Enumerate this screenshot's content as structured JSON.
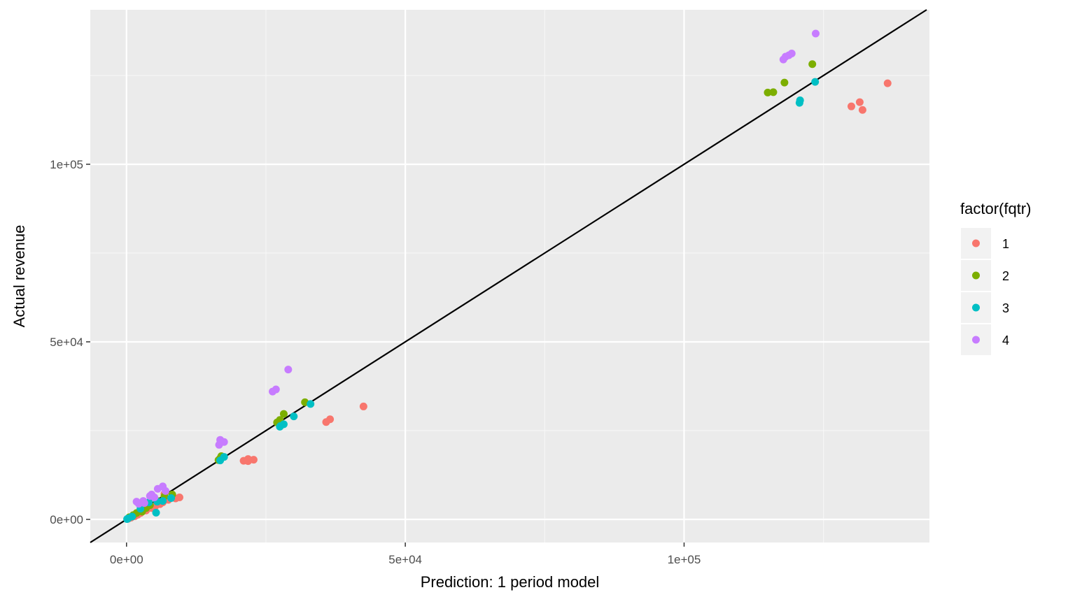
{
  "chart_data": {
    "type": "scatter",
    "title": "",
    "xlabel": "Prediction: 1 period model",
    "ylabel": "Actual revenue",
    "xlim": [
      -6500,
      144000
    ],
    "ylim": [
      -6500,
      143500
    ],
    "x_ticks": [
      {
        "value": 0,
        "label": "0e+00"
      },
      {
        "value": 50000,
        "label": "5e+04"
      },
      {
        "value": 100000,
        "label": "1e+05"
      }
    ],
    "y_ticks": [
      {
        "value": 0,
        "label": "0e+00"
      },
      {
        "value": 50000,
        "label": "5e+04"
      },
      {
        "value": 100000,
        "label": "1e+05"
      }
    ],
    "minor_breaks": [
      25000,
      75000,
      125000
    ],
    "grid": true,
    "reference_line": {
      "slope": 1,
      "intercept": 0
    },
    "legend": {
      "title": "factor(fqtr)",
      "position": "right"
    },
    "series": [
      {
        "name": "1",
        "color": "#F8766D",
        "points": [
          [
            136500,
            122800
          ],
          [
            131500,
            117500
          ],
          [
            130000,
            116300
          ],
          [
            132000,
            115300
          ],
          [
            42500,
            31800
          ],
          [
            36500,
            28200
          ],
          [
            35800,
            27400
          ],
          [
            22800,
            16800
          ],
          [
            21800,
            17000
          ],
          [
            21000,
            16500
          ],
          [
            21800,
            16400
          ],
          [
            9500,
            6200
          ],
          [
            8800,
            5900
          ],
          [
            7500,
            5500
          ],
          [
            6500,
            4800
          ],
          [
            6000,
            4300
          ],
          [
            5200,
            3800
          ],
          [
            4500,
            3200
          ],
          [
            3500,
            2500
          ],
          [
            2500,
            1800
          ],
          [
            2000,
            1300
          ],
          [
            1500,
            900
          ],
          [
            800,
            500
          ],
          [
            300,
            200
          ],
          [
            6800,
            7200
          ],
          [
            7200,
            5600
          ]
        ]
      },
      {
        "name": "2",
        "color": "#7CAE00",
        "points": [
          [
            123000,
            128200
          ],
          [
            118000,
            123000
          ],
          [
            116000,
            120300
          ],
          [
            115000,
            120200
          ],
          [
            32000,
            33000
          ],
          [
            28200,
            29700
          ],
          [
            27500,
            28000
          ],
          [
            27000,
            27300
          ],
          [
            17000,
            17800
          ],
          [
            16800,
            17200
          ],
          [
            16500,
            16700
          ],
          [
            8200,
            7000
          ],
          [
            6800,
            6500
          ],
          [
            5500,
            5200
          ],
          [
            4200,
            4000
          ],
          [
            3500,
            3200
          ],
          [
            2500,
            2500
          ],
          [
            1800,
            1800
          ],
          [
            1200,
            1200
          ],
          [
            500,
            600
          ],
          [
            2800,
            2200
          ]
        ]
      },
      {
        "name": "3",
        "color": "#00BFC4",
        "points": [
          [
            123500,
            123200
          ],
          [
            120800,
            118000
          ],
          [
            120700,
            117300
          ],
          [
            33000,
            32500
          ],
          [
            30000,
            29000
          ],
          [
            28200,
            26800
          ],
          [
            27600,
            26300
          ],
          [
            27500,
            26100
          ],
          [
            17500,
            17600
          ],
          [
            16800,
            16600
          ],
          [
            8000,
            6000
          ],
          [
            6500,
            5200
          ],
          [
            5500,
            5000
          ],
          [
            4000,
            4800
          ],
          [
            3200,
            4700
          ],
          [
            5300,
            1900
          ],
          [
            2500,
            3000
          ],
          [
            1000,
            800
          ],
          [
            300,
            300
          ],
          [
            100,
            100
          ]
        ]
      },
      {
        "name": "4",
        "color": "#C77CFF",
        "points": [
          [
            123600,
            136800
          ],
          [
            119300,
            131200
          ],
          [
            118800,
            130700
          ],
          [
            118200,
            130300
          ],
          [
            117800,
            129500
          ],
          [
            29000,
            42200
          ],
          [
            26800,
            36600
          ],
          [
            26200,
            36000
          ],
          [
            17500,
            21800
          ],
          [
            16800,
            22400
          ],
          [
            16600,
            21000
          ],
          [
            6500,
            9300
          ],
          [
            5600,
            8600
          ],
          [
            4500,
            7000
          ],
          [
            4200,
            6600
          ],
          [
            3000,
            5200
          ],
          [
            1800,
            5000
          ],
          [
            3200,
            4600
          ],
          [
            5000,
            6200
          ],
          [
            7000,
            8000
          ],
          [
            2200,
            4400
          ]
        ]
      }
    ]
  }
}
